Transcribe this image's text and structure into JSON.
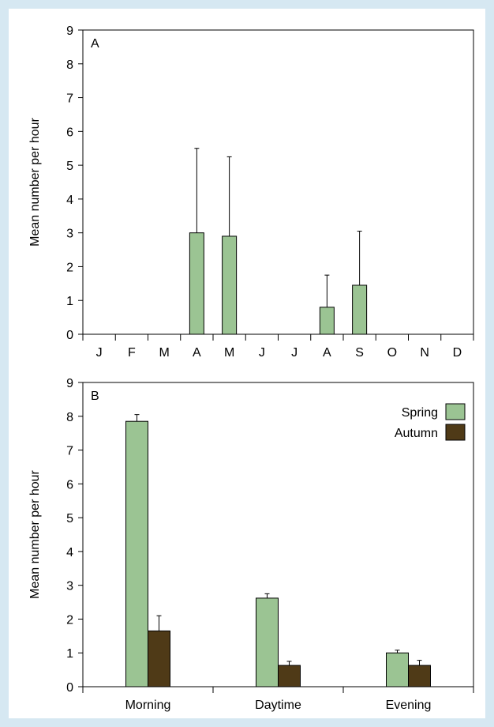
{
  "chart_data": [
    {
      "type": "bar",
      "panel_label": "A",
      "ylabel": "Mean number per hour",
      "xlabel": "",
      "ylim": [
        0,
        9
      ],
      "yticks": [
        0,
        1,
        2,
        3,
        4,
        5,
        6,
        7,
        8,
        9
      ],
      "categories": [
        "J",
        "F",
        "M",
        "A",
        "M",
        "J",
        "J",
        "A",
        "S",
        "O",
        "N",
        "D"
      ],
      "series": [
        {
          "color": "#9bc493",
          "values": [
            0,
            0,
            0,
            3.0,
            2.9,
            0,
            0,
            0.8,
            1.45,
            0,
            0,
            0
          ],
          "error_upper": [
            null,
            null,
            null,
            5.5,
            5.25,
            null,
            null,
            1.75,
            3.05,
            null,
            null,
            null
          ]
        }
      ],
      "grid": false,
      "legend": "none"
    },
    {
      "type": "bar",
      "panel_label": "B",
      "ylabel": "Mean number per hour",
      "xlabel": "",
      "ylim": [
        0,
        9
      ],
      "yticks": [
        0,
        1,
        2,
        3,
        4,
        5,
        6,
        7,
        8,
        9
      ],
      "categories": [
        "Morning",
        "Daytime",
        "Evening"
      ],
      "series": [
        {
          "name": "Spring",
          "color": "#9bc493",
          "values": [
            7.85,
            2.62,
            1.0
          ],
          "error_upper": [
            8.05,
            2.75,
            1.08
          ]
        },
        {
          "name": "Autumn",
          "color": "#4f3a17",
          "values": [
            1.65,
            0.63,
            0.63
          ],
          "error_upper": [
            2.1,
            0.75,
            0.78
          ]
        }
      ],
      "grid": false,
      "legend": "top-right"
    }
  ]
}
